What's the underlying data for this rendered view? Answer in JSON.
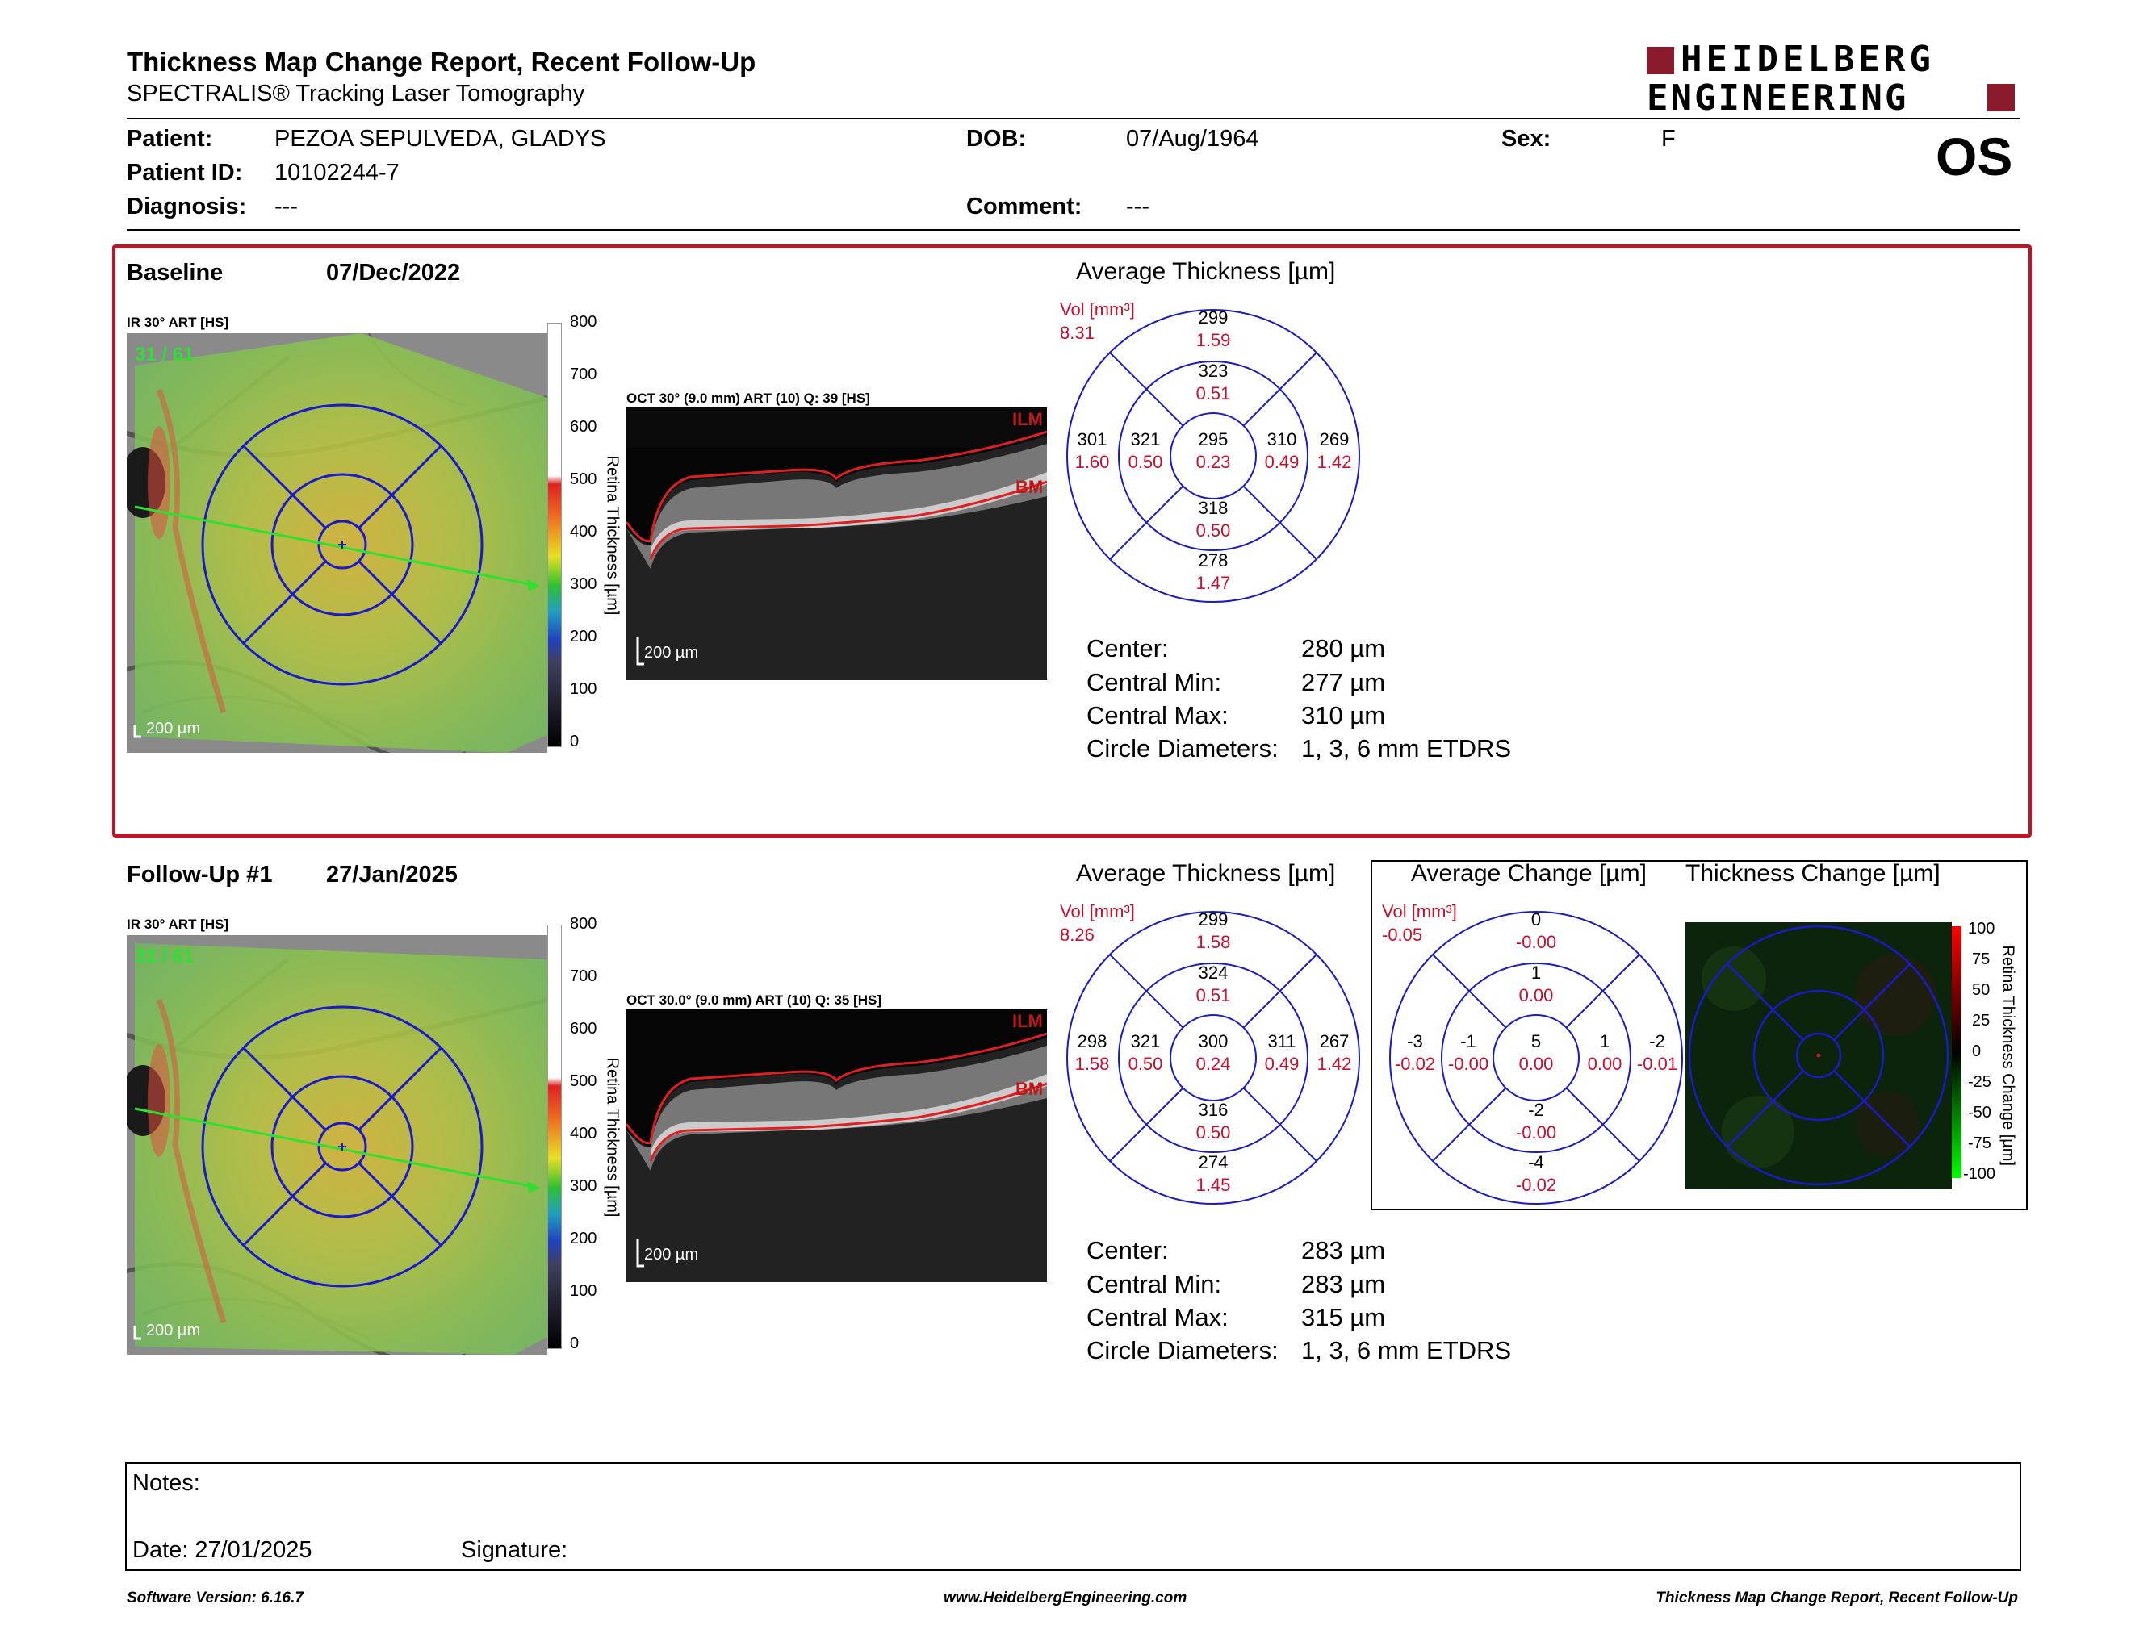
{
  "header": {
    "title": "Thickness Map Change Report, Recent Follow-Up",
    "subtitle": "SPECTRALIS® Tracking Laser Tomography",
    "logo_line1": "HEIDELBERG",
    "logo_line2": "ENGINEERING",
    "eye": "OS"
  },
  "patient": {
    "name_label": "Patient:",
    "name": "PEZOA SEPULVEDA, GLADYS",
    "id_label": "Patient ID:",
    "id": "10102244-7",
    "diag_label": "Diagnosis:",
    "diag": "---",
    "dob_label": "DOB:",
    "dob": "07/Aug/1964",
    "comment_label": "Comment:",
    "comment": "---",
    "sex_label": "Sex:",
    "sex": "F"
  },
  "colorbar_ticks": [
    "800",
    "700",
    "600",
    "500",
    "400",
    "300",
    "200",
    "100",
    "0"
  ],
  "colorbar_title": "Retina Thickness [µm]",
  "change_ticks": [
    "100",
    "75",
    "50",
    "25",
    "0",
    "-25",
    "-50",
    "-75",
    "-100"
  ],
  "change_bar_title": "Retina Thickness Change [µm]",
  "scale_200": "200 µm",
  "baseline": {
    "label": "Baseline",
    "date": "07/Dec/2022",
    "ir_label": "IR 30° ART [HS]",
    "ir_overlay": "31 / 61",
    "oct_label": "OCT 30° (9.0 mm) ART (10) Q: 39 [HS]",
    "ilm": "ILM",
    "bm": "BM",
    "avg_title": "Average Thickness [µm]",
    "vol_label": "Vol [mm³]",
    "vol_value": "8.31",
    "etdrs": {
      "outer_sup": [
        "299",
        "1.59"
      ],
      "inner_sup": [
        "323",
        "0.51"
      ],
      "outer_temp": [
        "301",
        "1.60"
      ],
      "inner_temp": [
        "321",
        "0.50"
      ],
      "center": [
        "295",
        "0.23"
      ],
      "inner_nas": [
        "310",
        "0.49"
      ],
      "outer_nas": [
        "269",
        "1.42"
      ],
      "inner_inf": [
        "318",
        "0.50"
      ],
      "outer_inf": [
        "278",
        "1.47"
      ]
    },
    "stats": [
      {
        "label": "Center:",
        "value": "280 µm"
      },
      {
        "label": "Central Min:",
        "value": "277 µm"
      },
      {
        "label": "Central Max:",
        "value": "310 µm"
      },
      {
        "label": "Circle Diameters:",
        "value": "1, 3, 6 mm ETDRS"
      }
    ]
  },
  "followup": {
    "label": "Follow-Up #1",
    "date": "27/Jan/2025",
    "ir_label": "IR 30° ART [HS]",
    "ir_overlay": "31 / 61",
    "oct_label": "OCT 30.0° (9.0 mm) ART (10) Q: 35 [HS]",
    "ilm": "ILM",
    "bm": "BM",
    "avg_title": "Average Thickness [µm]",
    "vol_label": "Vol [mm³]",
    "vol_value": "8.26",
    "etdrs": {
      "outer_sup": [
        "299",
        "1.58"
      ],
      "inner_sup": [
        "324",
        "0.51"
      ],
      "outer_temp": [
        "298",
        "1.58"
      ],
      "inner_temp": [
        "321",
        "0.50"
      ],
      "center": [
        "300",
        "0.24"
      ],
      "inner_nas": [
        "311",
        "0.49"
      ],
      "outer_nas": [
        "267",
        "1.42"
      ],
      "inner_inf": [
        "316",
        "0.50"
      ],
      "outer_inf": [
        "274",
        "1.45"
      ]
    },
    "stats": [
      {
        "label": "Center:",
        "value": "283 µm"
      },
      {
        "label": "Central Min:",
        "value": "283 µm"
      },
      {
        "label": "Central Max:",
        "value": "315 µm"
      },
      {
        "label": "Circle Diameters:",
        "value": "1, 3, 6 mm ETDRS"
      }
    ],
    "change_title": "Average Change [µm]",
    "change_vol_label": "Vol [mm³]",
    "change_vol_value": "-0.05",
    "change_etdrs": {
      "outer_sup": [
        "0",
        "-0.00"
      ],
      "inner_sup": [
        "1",
        "0.00"
      ],
      "outer_temp": [
        "-3",
        "-0.02"
      ],
      "inner_temp": [
        "-1",
        "-0.00"
      ],
      "center": [
        "5",
        "0.00"
      ],
      "inner_nas": [
        "1",
        "0.00"
      ],
      "outer_nas": [
        "-2",
        "-0.01"
      ],
      "inner_inf": [
        "-2",
        "-0.00"
      ],
      "outer_inf": [
        "-4",
        "-0.02"
      ]
    },
    "thickness_change_title": "Thickness Change [µm]"
  },
  "notes": {
    "label": "Notes:",
    "date": "Date: 27/01/2025",
    "signature": "Signature:"
  },
  "footer": {
    "version": "Software Version: 6.16.7",
    "website": "www.HeidelbergEngineering.com",
    "report": "Thickness Map Change Report, Recent Follow-Up"
  }
}
